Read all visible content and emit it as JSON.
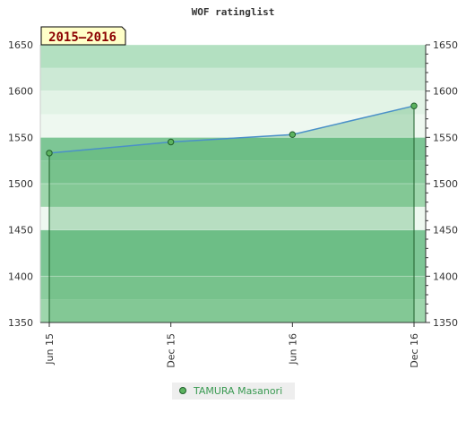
{
  "chart_data": {
    "type": "line",
    "title": "WOF ratinglist",
    "period_label": "2015–2016",
    "x_categories": [
      "Jun 15",
      "Dec 15",
      "Jun 16",
      "Dec 16"
    ],
    "ylim": [
      1350,
      1650
    ],
    "y_ticks": [
      1350,
      1400,
      1450,
      1500,
      1550,
      1600,
      1650
    ],
    "series": [
      {
        "name": "TAMURA Masanori",
        "values": [
          1533,
          1545,
          1553,
          1584
        ]
      }
    ],
    "grid": true,
    "legend_position": "bottom-center",
    "right_axis": true
  },
  "colors": {
    "band_dark": "#7dc695",
    "band_mid": "#8ccd9f",
    "band_light": "#9ed6ac",
    "band_pale": "#b3e0c1",
    "band_paler": "#cce9d5",
    "band_palest": "#e2f3e6",
    "band_faint": "#eef8f0",
    "line": "#4a90c8",
    "marker": "#5cb35f",
    "marker_stroke": "#1e5e2a",
    "period_bg": "#ffffc8"
  }
}
